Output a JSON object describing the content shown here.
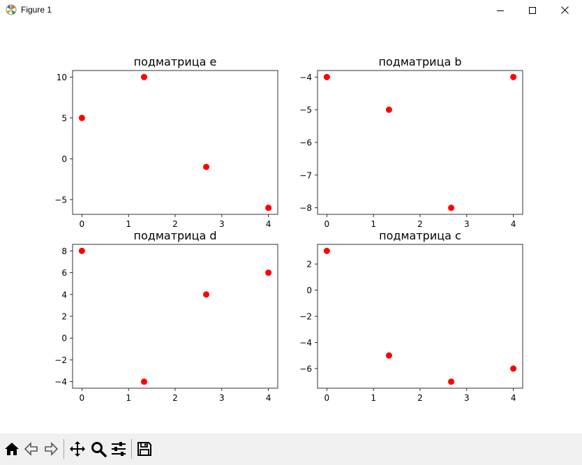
{
  "window": {
    "title": "Figure 1"
  },
  "toolbar": {
    "buttons": [
      {
        "icon": "home-icon"
      },
      {
        "icon": "back-arrow-icon"
      },
      {
        "icon": "forward-arrow-icon"
      },
      {
        "icon": "pan-move-icon"
      },
      {
        "icon": "zoom-magnifier-icon"
      },
      {
        "icon": "configure-subplots-icon"
      },
      {
        "icon": "save-floppy-icon"
      }
    ]
  },
  "colors": {
    "marker": "#ff0000",
    "toolbar_bg": "#f0f0f0"
  },
  "chart_data": [
    {
      "type": "scatter",
      "title": "подматрица e",
      "x": [
        0,
        1.3333,
        2.6667,
        4
      ],
      "y": [
        5,
        10,
        -1,
        -6
      ],
      "xlim": [
        -0.2,
        4.2
      ],
      "ylim": [
        -6.8,
        10.8
      ],
      "xticks": [
        0,
        1,
        2,
        3,
        4
      ],
      "yticks": [
        -5,
        0,
        5,
        10
      ],
      "ytick_labels": [
        "−5",
        "0",
        "5",
        "10"
      ],
      "xtick_labels": [
        "0",
        "1",
        "2",
        "3",
        "4"
      ]
    },
    {
      "type": "scatter",
      "title": "подматрица b",
      "x": [
        0,
        1.3333,
        2.6667,
        4
      ],
      "y": [
        -4,
        -5,
        -8,
        -4
      ],
      "xlim": [
        -0.2,
        4.2
      ],
      "ylim": [
        -8.2,
        -3.8
      ],
      "xticks": [
        0,
        1,
        2,
        3,
        4
      ],
      "yticks": [
        -8,
        -7,
        -6,
        -5,
        -4
      ],
      "ytick_labels": [
        "−8",
        "−7",
        "−6",
        "−5",
        "−4"
      ],
      "xtick_labels": [
        "0",
        "1",
        "2",
        "3",
        "4"
      ]
    },
    {
      "type": "scatter",
      "title": "подматрица d",
      "x": [
        0,
        1.3333,
        2.6667,
        4
      ],
      "y": [
        8,
        -4,
        4,
        6
      ],
      "xlim": [
        -0.2,
        4.2
      ],
      "ylim": [
        -4.6,
        8.6
      ],
      "xticks": [
        0,
        1,
        2,
        3,
        4
      ],
      "yticks": [
        -4,
        -2,
        0,
        2,
        4,
        6,
        8
      ],
      "ytick_labels": [
        "−4",
        "−2",
        "0",
        "2",
        "4",
        "6",
        "8"
      ],
      "xtick_labels": [
        "0",
        "1",
        "2",
        "3",
        "4"
      ]
    },
    {
      "type": "scatter",
      "title": "подматрица c",
      "x": [
        0,
        1.3333,
        2.6667,
        4
      ],
      "y": [
        3,
        -5,
        -7,
        -6
      ],
      "xlim": [
        -0.2,
        4.2
      ],
      "ylim": [
        -7.5,
        3.5
      ],
      "xticks": [
        0,
        1,
        2,
        3,
        4
      ],
      "yticks": [
        -6,
        -4,
        -2,
        0,
        2
      ],
      "ytick_labels": [
        "−6",
        "−4",
        "−2",
        "0",
        "2"
      ],
      "xtick_labels": [
        "0",
        "1",
        "2",
        "3",
        "4"
      ]
    }
  ]
}
